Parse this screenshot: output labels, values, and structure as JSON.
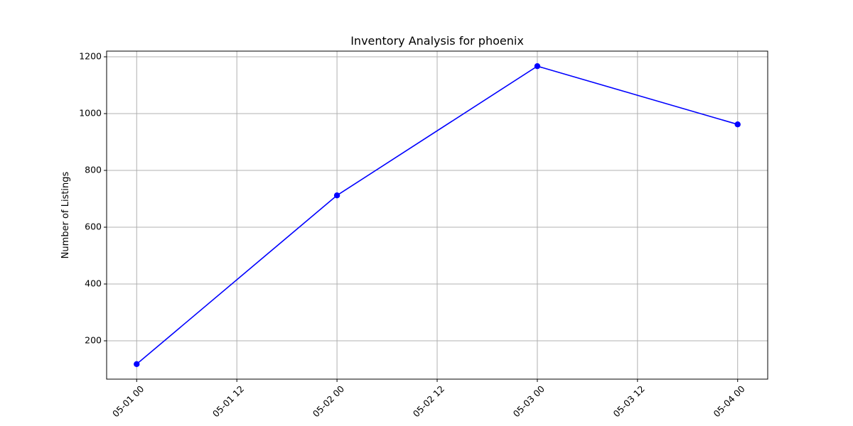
{
  "chart_data": {
    "type": "line",
    "title": "Inventory Analysis for phoenix",
    "xlabel": "",
    "ylabel": "Number of Listings",
    "x": [
      "05-01 00",
      "05-02 00",
      "05-03 00",
      "05-04 00"
    ],
    "series": [
      {
        "values": [
          118,
          712,
          1167,
          962
        ],
        "color": "#0000ff",
        "marker": "circle"
      }
    ],
    "x_ticks": [
      "05-01 00",
      "05-01 12",
      "05-02 00",
      "05-02 12",
      "05-03 00",
      "05-03 12",
      "05-04 00"
    ],
    "y_ticks": [
      200,
      400,
      600,
      800,
      1000,
      1200
    ],
    "ylim": [
      65,
      1220
    ],
    "grid": true,
    "grid_color": "#b0b0b0",
    "x_tick_rotation": "45 degrees"
  }
}
